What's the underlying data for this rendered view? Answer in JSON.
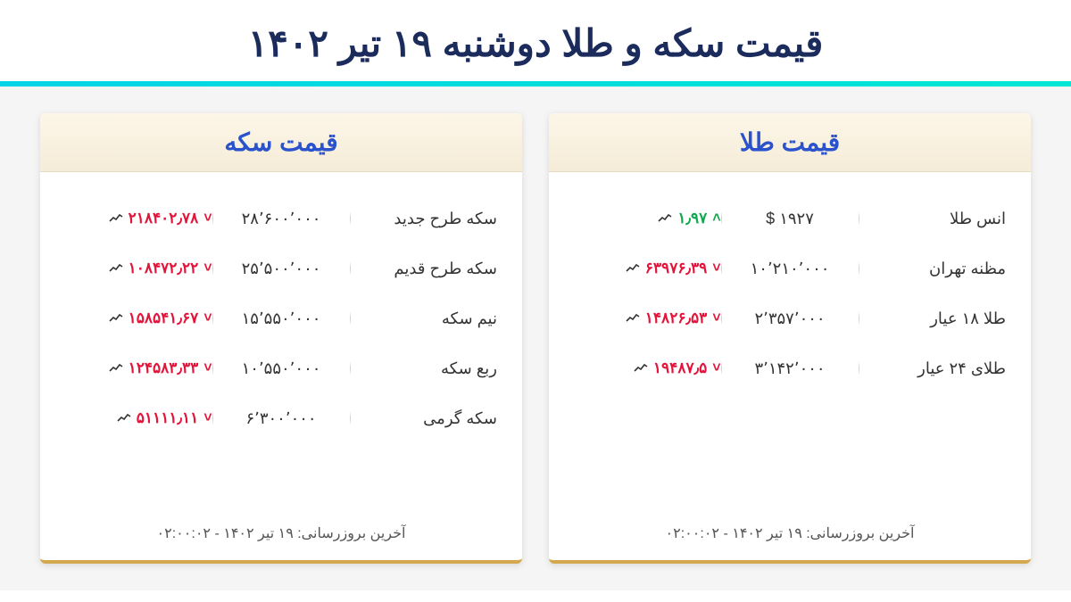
{
  "title": "قیمت سکه و طلا دوشنبه ۱۹ تیر ۱۴۰۲",
  "colors": {
    "header_text": "#1a2b5c",
    "divider": "#00d4e6",
    "card_title": "#2952cc",
    "card_header_bg": "#fdf6e8",
    "card_border_bottom": "#d4a94e",
    "up": "#0fa84e",
    "down": "#e3133a",
    "content_bg": "#f5f5f5"
  },
  "cards": {
    "gold": {
      "title": "قیمت طلا",
      "updated": "آخرین بروزرسانی: ۱۹ تیر ۱۴۰۲ - ۰۲:۰۰:۰۲",
      "rows": [
        {
          "name": "انس طلا",
          "price": "۱۹۲۷ $",
          "change": "۱٫۹۷",
          "dir": "up"
        },
        {
          "name": "مظنه تهران",
          "price": "۱۰٬۲۱۰٬۰۰۰",
          "change": "۶۳۹۷۶٫۳۹",
          "dir": "down"
        },
        {
          "name": "طلا ۱۸ عیار",
          "price": "۲٬۳۵۷٬۰۰۰",
          "change": "۱۴۸۲۶٫۵۳",
          "dir": "down"
        },
        {
          "name": "طلای ۲۴ عیار",
          "price": "۳٬۱۴۲٬۰۰۰",
          "change": "۱۹۴۸۷٫۵",
          "dir": "down"
        }
      ]
    },
    "coin": {
      "title": "قیمت سکه",
      "updated": "آخرین بروزرسانی: ۱۹ تیر ۱۴۰۲ - ۰۲:۰۰:۰۲",
      "rows": [
        {
          "name": "سکه طرح جدید",
          "price": "۲۸٬۶۰۰٬۰۰۰",
          "change": "۲۱۸۴۰۲٫۷۸",
          "dir": "down"
        },
        {
          "name": "سکه طرح قدیم",
          "price": "۲۵٬۵۰۰٬۰۰۰",
          "change": "۱۰۸۴۷۲٫۲۲",
          "dir": "down"
        },
        {
          "name": "نیم سکه",
          "price": "۱۵٬۵۵۰٬۰۰۰",
          "change": "۱۵۸۵۴۱٫۶۷",
          "dir": "down"
        },
        {
          "name": "ربع سکه",
          "price": "۱۰٬۵۵۰٬۰۰۰",
          "change": "۱۲۴۵۸۳٫۳۳",
          "dir": "down"
        },
        {
          "name": "سکه گرمی",
          "price": "۶٬۳۰۰٬۰۰۰",
          "change": "۵۱۱۱۱٫۱۱",
          "dir": "down"
        }
      ]
    }
  }
}
